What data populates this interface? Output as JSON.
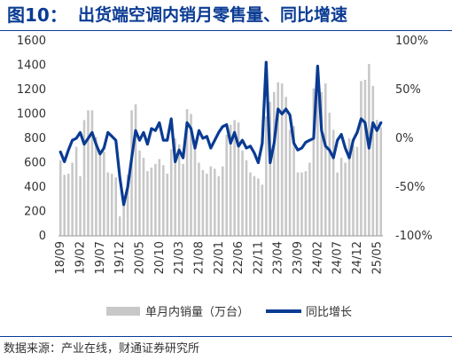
{
  "header": {
    "figure_number": "图10：",
    "title": "出货端空调内销月零售量、同比增速"
  },
  "footer": {
    "source": "数据来源：产业在线，财通证券研究所"
  },
  "colors": {
    "bar": "#c8c8c8",
    "line": "#0a3b93",
    "title": "#0a3b93"
  },
  "chart_data": {
    "type": "bar+line",
    "x": [
      "18/09",
      "18/10",
      "18/11",
      "18/12",
      "19/01",
      "19/02",
      "19/03",
      "19/04",
      "19/05",
      "19/06",
      "19/07",
      "19/08",
      "19/09",
      "19/10",
      "19/11",
      "19/12",
      "20/01",
      "20/02",
      "20/03",
      "20/04",
      "20/05",
      "20/06",
      "20/07",
      "20/08",
      "20/09",
      "20/10",
      "20/11",
      "20/12",
      "21/01",
      "21/02",
      "21/03",
      "21/04",
      "21/05",
      "21/06",
      "21/07",
      "21/08",
      "21/09",
      "21/10",
      "21/11",
      "21/12",
      "22/01",
      "22/02",
      "22/03",
      "22/04",
      "22/05",
      "22/06",
      "22/07",
      "22/08",
      "22/09",
      "22/10",
      "22/11",
      "22/12",
      "23/01",
      "23/02",
      "23/03",
      "23/04",
      "23/05",
      "23/06",
      "23/07",
      "23/08",
      "23/09",
      "23/10",
      "23/11",
      "23/12",
      "24/01",
      "24/02",
      "24/03",
      "24/04",
      "24/05",
      "24/06",
      "24/07",
      "24/08",
      "24/09",
      "24/10",
      "24/11",
      "24/12",
      "25/01",
      "25/02",
      "25/03",
      "25/04",
      "25/05",
      "25/06"
    ],
    "xtick_labels": [
      "18/09",
      "19/02",
      "19/07",
      "19/12",
      "20/05",
      "20/10",
      "21/03",
      "21/08",
      "22/01",
      "22/06",
      "22/11",
      "23/04",
      "23/09",
      "24/02",
      "24/07",
      "24/12",
      "25/05"
    ],
    "series": [
      {
        "name": "单月内销量（万台）",
        "type": "bar",
        "axis": "left",
        "values": [
          620,
          500,
          510,
          600,
          730,
          490,
          950,
          1030,
          1030,
          810,
          700,
          690,
          520,
          510,
          480,
          160,
          250,
          500,
          1030,
          1080,
          700,
          640,
          530,
          560,
          590,
          630,
          580,
          510,
          710,
          800,
          750,
          590,
          1040,
          1000,
          760,
          600,
          540,
          510,
          570,
          550,
          490,
          570,
          830,
          910,
          950,
          930,
          700,
          620,
          520,
          490,
          470,
          420,
          980,
          1100,
          1180,
          1260,
          1250,
          1140,
          870,
          900,
          520,
          520,
          530,
          600,
          1210,
          1230,
          1180,
          1250,
          1010,
          870,
          520,
          640,
          600,
          800,
          740,
          730,
          1270,
          1280,
          1410,
          1230,
          950,
          890
        ]
      },
      {
        "name": "同比增长",
        "type": "line",
        "axis": "right",
        "values": [
          -14,
          -24,
          -12,
          -2,
          0,
          6,
          -6,
          0,
          6,
          -6,
          -16,
          -10,
          6,
          2,
          -2,
          -40,
          -68,
          -50,
          -20,
          8,
          -2,
          6,
          -6,
          10,
          8,
          16,
          -2,
          -2,
          20,
          -24,
          -12,
          -20,
          16,
          10,
          -10,
          8,
          0,
          2,
          -10,
          -2,
          6,
          12,
          14,
          -5,
          6,
          -8,
          -2,
          -10,
          -8,
          -15,
          -25,
          -5,
          78,
          -25,
          -5,
          30,
          25,
          30,
          24,
          -5,
          -12,
          -10,
          -4,
          -2,
          0,
          74,
          8,
          -8,
          -12,
          -20,
          -2,
          4,
          -10,
          -20,
          -2,
          6,
          20,
          16,
          -10,
          16,
          8,
          16
        ]
      }
    ],
    "y_left": {
      "min": 0,
      "max": 1600,
      "ticks": [
        0,
        200,
        400,
        600,
        800,
        1000,
        1200,
        1400,
        1600
      ]
    },
    "y_right": {
      "min": -100,
      "max": 100,
      "ticks": [
        "-100%",
        "-50%",
        "0%",
        "50%",
        "100%"
      ]
    },
    "legend": {
      "position": "bottom-center"
    }
  }
}
